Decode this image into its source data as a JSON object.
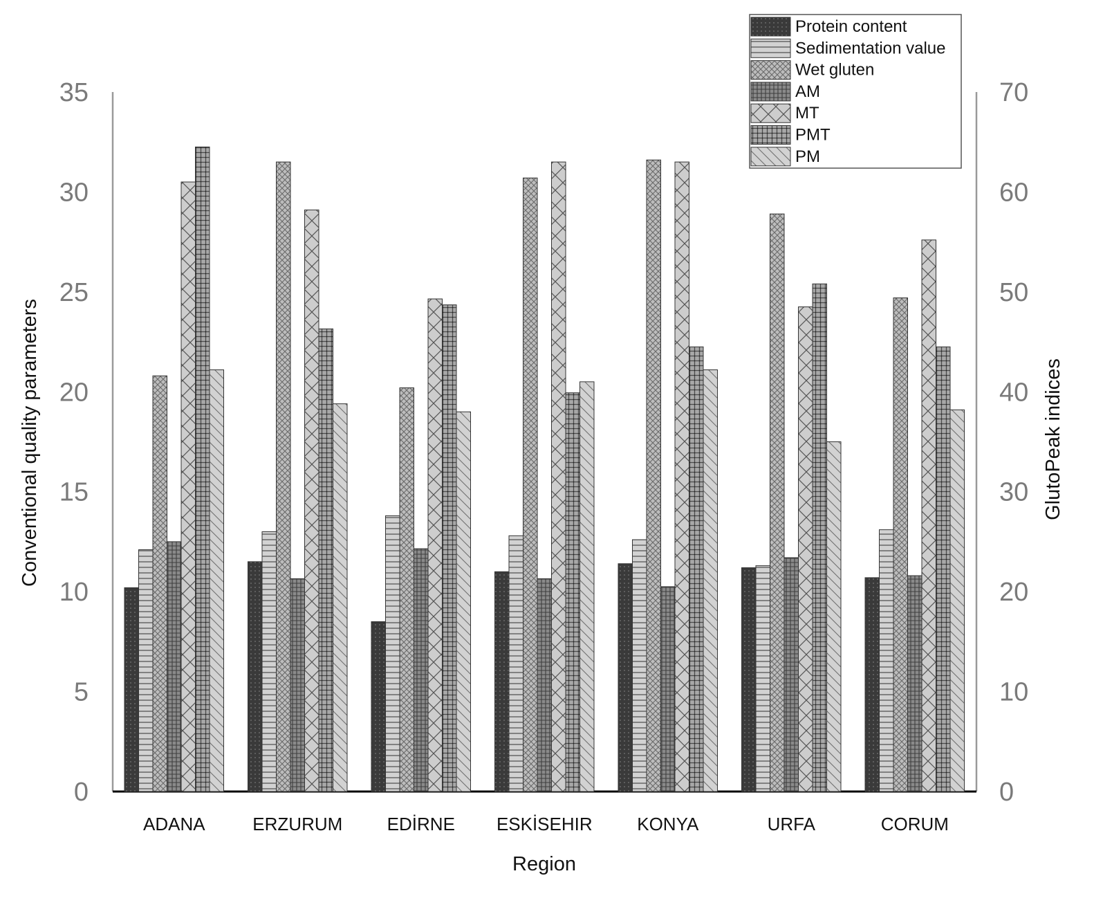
{
  "chart_data": {
    "type": "bar",
    "xlabel": "Region",
    "ylabel_left": "Conventional quality parameters",
    "ylabel_right": "GlutoPeak indices",
    "ylim_left": [
      0,
      35
    ],
    "ylim_right": [
      0,
      70
    ],
    "yticks_left": [
      "0",
      "5",
      "10",
      "15",
      "20",
      "25",
      "30",
      "35"
    ],
    "yticks_right": [
      "0",
      "10",
      "20",
      "30",
      "40",
      "50",
      "60",
      "70"
    ],
    "legend_position": "top-right",
    "grid": false,
    "categories": [
      "ADANA",
      "ERZURUM",
      "EDİRNE",
      "ESKİSEHIR",
      "KONYA",
      "URFA",
      "CORUM"
    ],
    "series": [
      {
        "name": "Protein content",
        "axis": "left",
        "pattern": "dots-dark",
        "color": "#3c3c3c",
        "values": [
          10.2,
          11.5,
          8.5,
          11.0,
          11.4,
          11.2,
          10.7
        ]
      },
      {
        "name": "Sedimentation value",
        "axis": "left",
        "pattern": "hlines",
        "color": "#c8c8c8",
        "values": [
          12.1,
          13.0,
          13.8,
          12.8,
          12.6,
          11.3,
          13.1
        ]
      },
      {
        "name": "Wet gluten",
        "axis": "left",
        "pattern": "crosshatch",
        "color": "#b4b4b4",
        "values": [
          20.8,
          31.5,
          20.2,
          30.7,
          31.6,
          28.9,
          24.7
        ]
      },
      {
        "name": "AM",
        "axis": "right",
        "pattern": "grid-dark",
        "color": "#7a7a7a",
        "values": [
          25.0,
          21.3,
          24.3,
          21.3,
          20.5,
          23.4,
          21.6
        ]
      },
      {
        "name": "MT",
        "axis": "right",
        "pattern": "x-large",
        "color": "#c0c0c0",
        "values": [
          61.0,
          58.2,
          49.3,
          63.0,
          63.0,
          48.5,
          55.2
        ]
      },
      {
        "name": "PMT",
        "axis": "right",
        "pattern": "grid-medium",
        "color": "#a0a0a0",
        "values": [
          64.5,
          46.3,
          48.7,
          39.9,
          44.5,
          50.8,
          44.5
        ]
      },
      {
        "name": "PM",
        "axis": "right",
        "pattern": "diag",
        "color": "#cfcfcf",
        "values": [
          42.2,
          38.8,
          38.0,
          41.0,
          42.2,
          35.0,
          38.2
        ]
      }
    ]
  }
}
